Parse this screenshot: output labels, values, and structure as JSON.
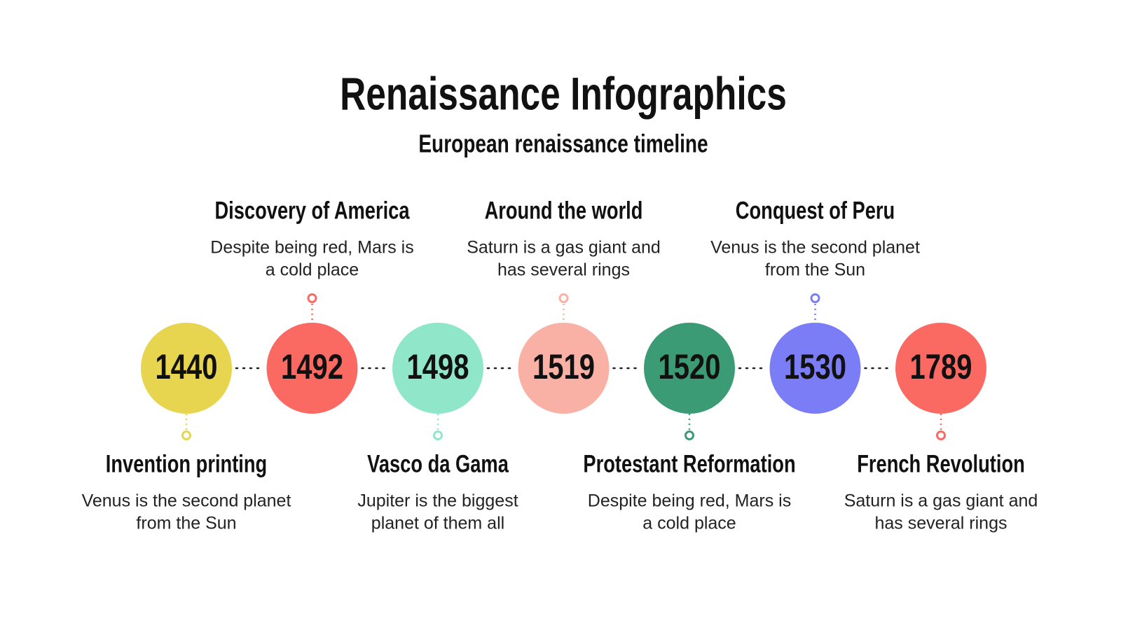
{
  "header": {
    "title": "Renaissance Infographics",
    "subtitle": "European renaissance timeline"
  },
  "events": [
    {
      "year": "1440",
      "title": "Invention printing",
      "description": [
        "Venus is the second planet",
        "from the Sun"
      ],
      "color": "#e8d54f"
    },
    {
      "year": "1492",
      "title": "Discovery of America",
      "description": [
        "Despite being red, Mars is",
        "a cold place"
      ],
      "color": "#fa6a63"
    },
    {
      "year": "1498",
      "title": "Vasco da Gama",
      "description": [
        "Jupiter is the biggest",
        "planet of them all"
      ],
      "color": "#8fe6c9"
    },
    {
      "year": "1519",
      "title": "Around the world",
      "description": [
        "Saturn is a gas giant and",
        "has several rings"
      ],
      "color": "#f9b1a5"
    },
    {
      "year": "1520",
      "title": "Protestant Reformation",
      "description": [
        "Despite being red, Mars is",
        "a cold place"
      ],
      "color": "#3b9b74"
    },
    {
      "year": "1530",
      "title": "Conquest of Peru",
      "description": [
        "Venus is the second planet",
        "from the Sun"
      ],
      "color": "#7b7df6"
    },
    {
      "year": "1789",
      "title": "French Revolution",
      "description": [
        "Saturn is a gas giant and",
        "has several rings"
      ],
      "color": "#fa6a63"
    }
  ]
}
